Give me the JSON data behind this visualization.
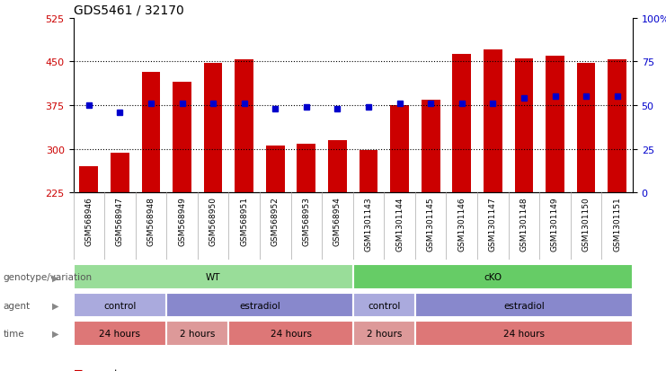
{
  "title": "GDS5461 / 32170",
  "samples": [
    "GSM568946",
    "GSM568947",
    "GSM568948",
    "GSM568949",
    "GSM568950",
    "GSM568951",
    "GSM568952",
    "GSM568953",
    "GSM568954",
    "GSM1301143",
    "GSM1301144",
    "GSM1301145",
    "GSM1301146",
    "GSM1301147",
    "GSM1301148",
    "GSM1301149",
    "GSM1301150",
    "GSM1301151"
  ],
  "bar_values": [
    270,
    293,
    432,
    415,
    447,
    453,
    305,
    308,
    315,
    298,
    375,
    385,
    463,
    470,
    455,
    460,
    447,
    453
  ],
  "percentile_values": [
    50,
    46,
    51,
    51,
    51,
    51,
    48,
    49,
    48,
    49,
    51,
    51,
    51,
    51,
    54,
    55,
    55,
    55
  ],
  "bar_color": "#cc0000",
  "dot_color": "#0000cc",
  "ylim_left": [
    225,
    525
  ],
  "ylim_right": [
    0,
    100
  ],
  "yticks_left": [
    225,
    300,
    375,
    450,
    525
  ],
  "yticks_right": [
    0,
    25,
    50,
    75,
    100
  ],
  "ytick_labels_right": [
    "0",
    "25",
    "50",
    "75",
    "100%"
  ],
  "grid_values": [
    300,
    375,
    450
  ],
  "bg_color": "#ffffff",
  "bar_width": 0.6,
  "annotation_rows": [
    {
      "label": "genotype/variation",
      "groups": [
        {
          "text": "WT",
          "start": 0,
          "end": 8,
          "color": "#99dd99"
        },
        {
          "text": "cKO",
          "start": 9,
          "end": 17,
          "color": "#66cc66"
        }
      ]
    },
    {
      "label": "agent",
      "groups": [
        {
          "text": "control",
          "start": 0,
          "end": 2,
          "color": "#aaaadd"
        },
        {
          "text": "estradiol",
          "start": 3,
          "end": 8,
          "color": "#8888cc"
        },
        {
          "text": "control",
          "start": 9,
          "end": 10,
          "color": "#aaaadd"
        },
        {
          "text": "estradiol",
          "start": 11,
          "end": 17,
          "color": "#8888cc"
        }
      ]
    },
    {
      "label": "time",
      "groups": [
        {
          "text": "24 hours",
          "start": 0,
          "end": 2,
          "color": "#dd7777"
        },
        {
          "text": "2 hours",
          "start": 3,
          "end": 4,
          "color": "#dd9999"
        },
        {
          "text": "24 hours",
          "start": 5,
          "end": 8,
          "color": "#dd7777"
        },
        {
          "text": "2 hours",
          "start": 9,
          "end": 10,
          "color": "#dd9999"
        },
        {
          "text": "24 hours",
          "start": 11,
          "end": 17,
          "color": "#dd7777"
        }
      ]
    }
  ]
}
